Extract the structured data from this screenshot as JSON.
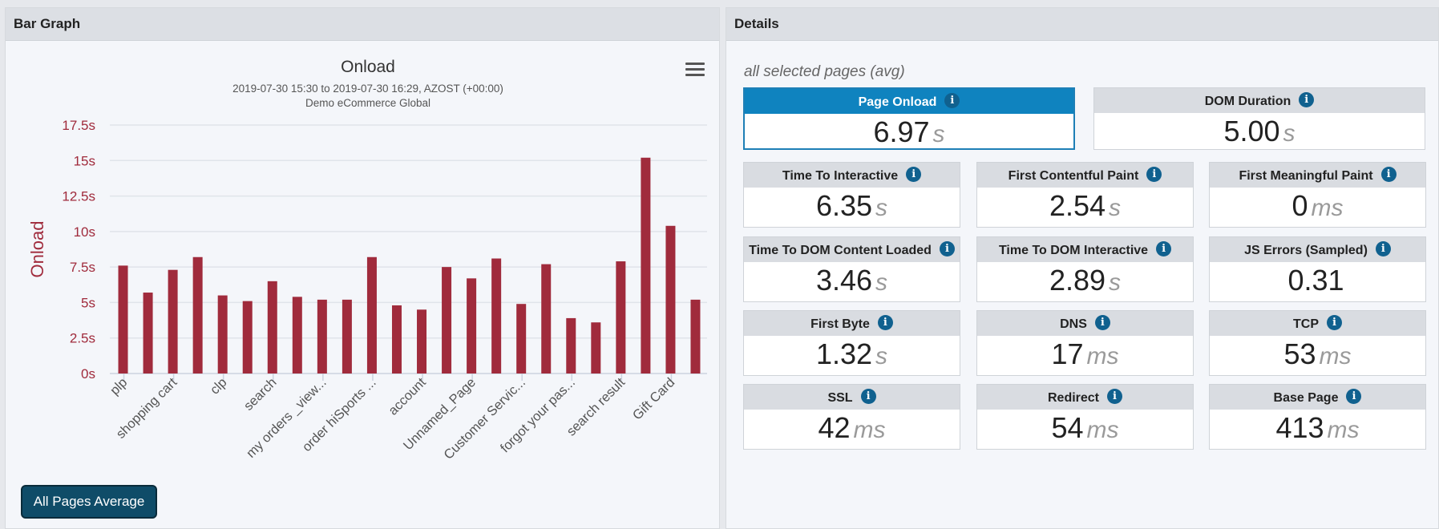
{
  "left_panel": {
    "title": "Bar Graph"
  },
  "right_panel": {
    "title": "Details",
    "subtitle": "all selected pages (avg)"
  },
  "buttons": {
    "all_pages_average": "All Pages Average"
  },
  "chart_data": {
    "type": "bar",
    "title": "Onload",
    "subtitle": "2019-07-30 15:30 to 2019-07-30 16:29, AZOST (+00:00)",
    "subtitle2": "Demo eCommerce Global",
    "ylabel": "Onload",
    "xlabel": "",
    "ylim": [
      0,
      17.5
    ],
    "yticks": [
      "0s",
      "2.5s",
      "5s",
      "7.5s",
      "10s",
      "12.5s",
      "15s",
      "17.5s"
    ],
    "color": "#a02b3c",
    "categories": [
      "plp",
      "",
      "shopping cart",
      "",
      "clp",
      "",
      "search",
      "",
      "my orders _view...",
      "",
      "order hiSports ...",
      "",
      "account",
      "",
      "Unnamed_Page",
      "",
      "Customer Servic...",
      "",
      "forgot your pas...",
      "",
      "search result",
      "",
      "Gift Card",
      ""
    ],
    "values": [
      7.6,
      5.7,
      7.3,
      8.2,
      5.5,
      5.1,
      6.5,
      5.4,
      5.2,
      5.2,
      8.2,
      4.8,
      4.5,
      7.5,
      6.7,
      8.1,
      4.9,
      7.7,
      3.9,
      3.6,
      7.9,
      15.2,
      10.4,
      5.2
    ]
  },
  "metrics": [
    {
      "label": "Page Onload",
      "value": "6.97",
      "unit": "s",
      "selected": true
    },
    {
      "label": "DOM Duration",
      "value": "5.00",
      "unit": "s"
    },
    {
      "label": "Time To Interactive",
      "value": "6.35",
      "unit": "s"
    },
    {
      "label": "First Contentful Paint",
      "value": "2.54",
      "unit": "s"
    },
    {
      "label": "First Meaningful Paint",
      "value": "0",
      "unit": "ms"
    },
    {
      "label": "Time To DOM Content Loaded",
      "value": "3.46",
      "unit": "s"
    },
    {
      "label": "Time To DOM Interactive",
      "value": "2.89",
      "unit": "s"
    },
    {
      "label": "JS Errors (Sampled)",
      "value": "0.31",
      "unit": ""
    },
    {
      "label": "First Byte",
      "value": "1.32",
      "unit": "s"
    },
    {
      "label": "DNS",
      "value": "17",
      "unit": "ms"
    },
    {
      "label": "TCP",
      "value": "53",
      "unit": "ms"
    },
    {
      "label": "SSL",
      "value": "42",
      "unit": "ms"
    },
    {
      "label": "Redirect",
      "value": "54",
      "unit": "ms"
    },
    {
      "label": "Base Page",
      "value": "413",
      "unit": "ms"
    }
  ],
  "icons": {
    "info": "info-icon",
    "menu": "hamburger-menu-icon"
  },
  "colors": {
    "accent": "#0f83bf",
    "bar": "#a02b3c",
    "button": "#0f4c68"
  }
}
